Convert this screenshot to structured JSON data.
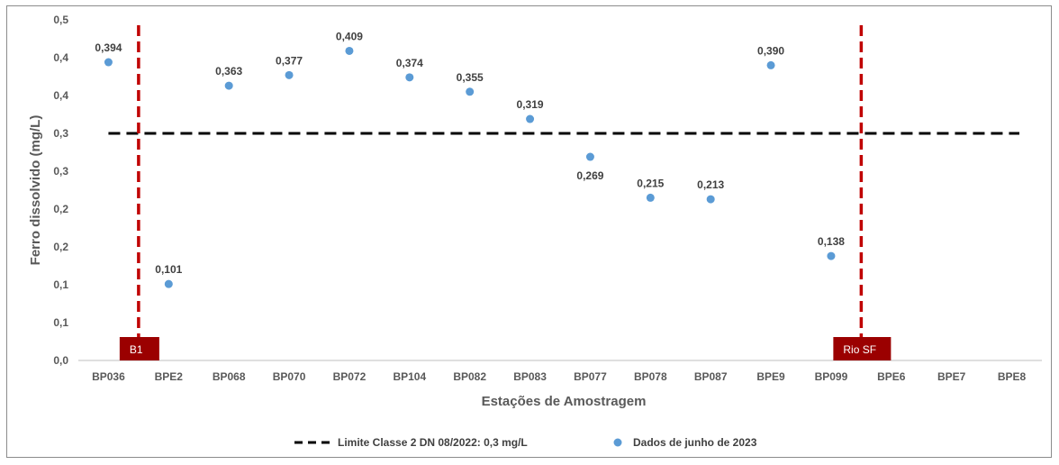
{
  "chart_data": {
    "type": "scatter",
    "xlabel": "Estações de Amostragem",
    "ylabel": "Ferro dissolvido (mg/L)",
    "categories": [
      "BP036",
      "BPE2",
      "BP068",
      "BP070",
      "BP072",
      "BP104",
      "BP082",
      "BP083",
      "BP077",
      "BP078",
      "BP087",
      "BPE9",
      "BP099",
      "BPE6",
      "BPE7",
      "BPE8"
    ],
    "ylim": [
      0,
      0.45
    ],
    "yticks": [
      0.0,
      0.05,
      0.1,
      0.15,
      0.2,
      0.25,
      0.3,
      0.35,
      0.4,
      0.45
    ],
    "ytick_labels": [
      "0,0",
      "0,1",
      "0,1",
      "0,2",
      "0,2",
      "0,3",
      "0,3",
      "0,4",
      "0,4",
      "0,5"
    ],
    "series": [
      {
        "name": "Dados de junho de 2023",
        "color": "#5b9bd5",
        "points": [
          {
            "x": "BP036",
            "y": 0.394,
            "label": "0,394"
          },
          {
            "x": "BPE2",
            "y": 0.101,
            "label": "0,101"
          },
          {
            "x": "BP068",
            "y": 0.363,
            "label": "0,363"
          },
          {
            "x": "BP070",
            "y": 0.377,
            "label": "0,377"
          },
          {
            "x": "BP072",
            "y": 0.409,
            "label": "0,409"
          },
          {
            "x": "BP104",
            "y": 0.374,
            "label": "0,374"
          },
          {
            "x": "BP082",
            "y": 0.355,
            "label": "0,355"
          },
          {
            "x": "BP083",
            "y": 0.319,
            "label": "0,319"
          },
          {
            "x": "BP077",
            "y": 0.269,
            "label": "0,269"
          },
          {
            "x": "BP078",
            "y": 0.215,
            "label": "0,215"
          },
          {
            "x": "BP087",
            "y": 0.213,
            "label": "0,213"
          },
          {
            "x": "BPE9",
            "y": 0.39,
            "label": "0,390"
          },
          {
            "x": "BP099",
            "y": 0.138,
            "label": "0,138"
          }
        ]
      }
    ],
    "reference_line": {
      "name": "Limite Classe 2 DN 08/2022: 0,3 mg/L",
      "y": 0.3,
      "color": "#000000",
      "style": "dashed"
    },
    "dividers": [
      {
        "label": "B1",
        "position_between": [
          "BP036",
          "BPE2"
        ],
        "color": "#c00000"
      },
      {
        "label": "Rio SF",
        "position_between": [
          "BP099",
          "BPE6"
        ],
        "color": "#c00000"
      }
    ],
    "region_label_color": "#9b0000",
    "legend_position": "bottom",
    "grid": false
  }
}
